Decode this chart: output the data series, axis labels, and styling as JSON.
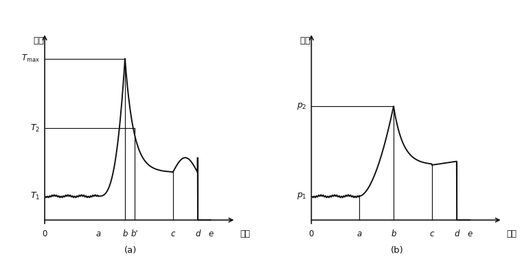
{
  "fig_width": 7.6,
  "fig_height": 4.0,
  "dpi": 100,
  "bg_color": "#ffffff",
  "line_color": "#111111",
  "line_width": 1.4,
  "chart_a": {
    "ylabel": "扭矩",
    "xlabel": "时间",
    "caption": "(a)",
    "x_labels": [
      "0",
      "a",
      "b",
      "b'",
      "c",
      "d",
      "e"
    ],
    "x_ticks": [
      0.0,
      0.28,
      0.42,
      0.47,
      0.67,
      0.8,
      0.87
    ],
    "T1": 0.13,
    "T2": 0.5,
    "Tmax": 0.88
  },
  "chart_b": {
    "ylabel": "力値",
    "xlabel": "时间",
    "caption": "(b)",
    "x_labels": [
      "0",
      "a",
      "b",
      "c",
      "d",
      "e"
    ],
    "x_ticks": [
      0.0,
      0.25,
      0.43,
      0.63,
      0.76,
      0.83
    ],
    "p1": 0.13,
    "p2": 0.62
  }
}
